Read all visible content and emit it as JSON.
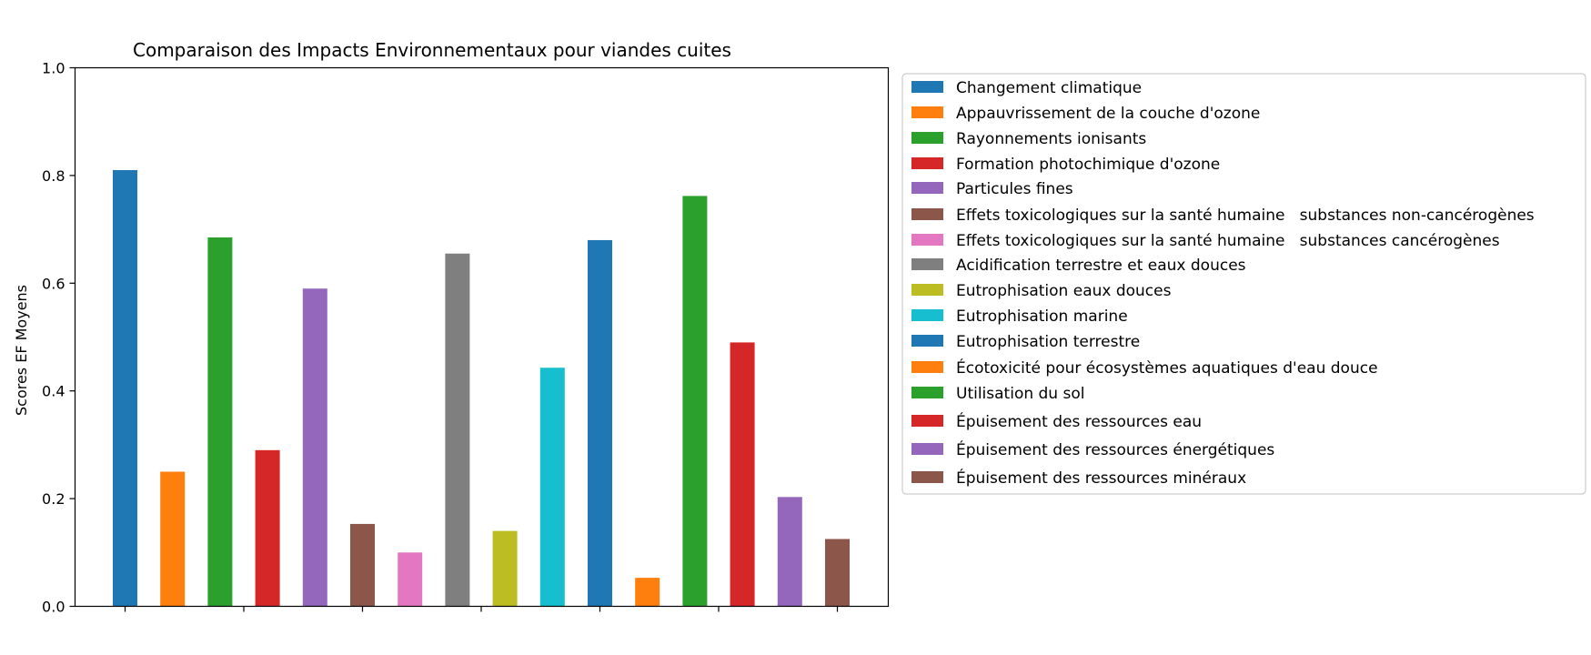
{
  "chart_data": {
    "type": "bar",
    "title": "Comparaison des Impacts Environnementaux pour viandes cuites",
    "xlabel": "",
    "ylabel": "Scores EF Moyens",
    "ylim": [
      0,
      1.0
    ],
    "yticks": [
      "0.0",
      "0.2",
      "0.4",
      "0.6",
      "0.8",
      "1.0"
    ],
    "legend_position": "outside right",
    "series": [
      {
        "name": "Changement climatique",
        "value": 0.81,
        "color": "#1f77b4"
      },
      {
        "name": "Appauvrissement de la couche d'ozone",
        "value": 0.25,
        "color": "#ff7f0e"
      },
      {
        "name": "Rayonnements ionisants",
        "value": 0.685,
        "color": "#2ca02c"
      },
      {
        "name": "Formation photochimique d'ozone",
        "value": 0.29,
        "color": "#d62728"
      },
      {
        "name": "Particules fines",
        "value": 0.59,
        "color": "#9467bd"
      },
      {
        "name": "Effets toxicologiques sur la santé humaine   substances non-cancérogènes",
        "value": 0.153,
        "color": "#8c564b"
      },
      {
        "name": "Effets toxicologiques sur la santé humaine   substances cancérogènes",
        "value": 0.1,
        "color": "#e377c2"
      },
      {
        "name": "Acidification terrestre et eaux douces",
        "value": 0.655,
        "color": "#7f7f7f"
      },
      {
        "name": "Eutrophisation eaux douces",
        "value": 0.14,
        "color": "#bcbd22"
      },
      {
        "name": "Eutrophisation marine",
        "value": 0.443,
        "color": "#17becf"
      },
      {
        "name": "Eutrophisation terrestre",
        "value": 0.68,
        "color": "#1f77b4"
      },
      {
        "name": "Écotoxicité pour écosystèmes aquatiques d'eau douce",
        "value": 0.053,
        "color": "#ff7f0e"
      },
      {
        "name": "Utilisation du sol",
        "value": 0.762,
        "color": "#2ca02c"
      },
      {
        "name": "Épuisement des ressources eau",
        "value": 0.49,
        "color": "#d62728"
      },
      {
        "name": "Épuisement des ressources énergétiques",
        "value": 0.203,
        "color": "#9467bd"
      },
      {
        "name": "Épuisement des ressources minéraux",
        "value": 0.125,
        "color": "#8c564b"
      }
    ]
  }
}
